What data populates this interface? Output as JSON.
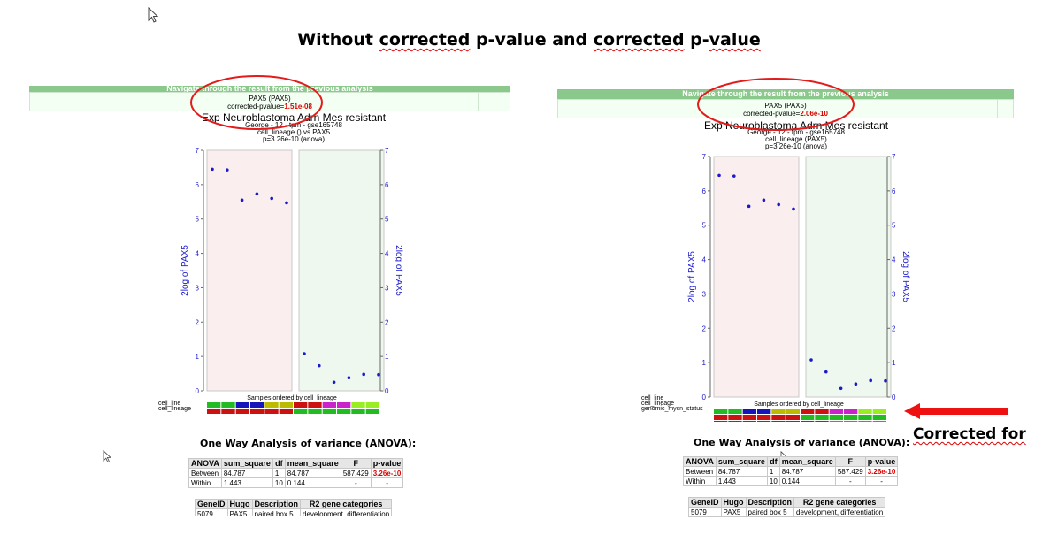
{
  "title": {
    "part1": "Without ",
    "part2": "corrected",
    "part3": " p-value and ",
    "part4": "corrected",
    "part5": " p-",
    "part6": "value"
  },
  "panels": [
    {
      "nav_label": "Navigate through the result from the previous analysis",
      "gene": "PAX5 (PAX5)",
      "pvalue_label": "corrected-pvalue=",
      "pvalue": "1.51e-08",
      "chart_title": "Exp Neuroblastoma Adrn Mes resistant",
      "subtitle_lines": [
        "George - 12 - tpm - gse165748",
        "cell_lineage () vs PAX5",
        "p=3.26e-10 (anova)"
      ],
      "legend_labels": [
        "cell_line",
        "cell_lineage"
      ],
      "anova": {
        "title": "One Way Analysis of variance (ANOVA):",
        "headers": [
          "ANOVA",
          "sum_square",
          "df",
          "mean_square",
          "F",
          "p-value"
        ],
        "rows": [
          [
            "Between",
            "84.787",
            "1",
            "84.787",
            "587.429",
            "3.26e-10"
          ],
          [
            "Within",
            "1.443",
            "10",
            "0.144",
            "-",
            "-"
          ]
        ]
      },
      "gene_table": {
        "headers": [
          "GeneID",
          "Hugo",
          "Description",
          "R2 gene categories"
        ],
        "rows": [
          [
            "5079",
            "PAX5",
            "paired box 5",
            "development, differentiation"
          ]
        ]
      }
    },
    {
      "nav_label": "Navigate through the result from the previous analysis",
      "gene": "PAX5 (PAX5)",
      "pvalue_label": "corrected-pvalue=",
      "pvalue": "2.06e-10",
      "chart_title": "Exp Neuroblastoma Adrn Mes resistant",
      "subtitle_lines": [
        "George - 12 - tpm - gse165748",
        "cell_lineage (PAX5)",
        "p=3.26e-10 (anova)"
      ],
      "legend_labels": [
        "cell_line",
        "cell_lineage",
        "genomic_mycn_status"
      ],
      "anova": {
        "title": "One Way Analysis of variance (ANOVA):",
        "headers": [
          "ANOVA",
          "sum_square",
          "df",
          "mean_square",
          "F",
          "p-value"
        ],
        "rows": [
          [
            "Between",
            "84.787",
            "1",
            "84.787",
            "587.429",
            "3.26e-10"
          ],
          [
            "Within",
            "1.443",
            "10",
            "0.144",
            "-",
            "-"
          ]
        ]
      },
      "gene_table": {
        "headers": [
          "GeneID",
          "Hugo",
          "Description",
          "R2 gene categories"
        ],
        "rows": [
          [
            "5079",
            "PAX5",
            "paired box 5",
            "development, differentiation"
          ]
        ]
      }
    }
  ],
  "chart_data": [
    {
      "type": "scatter",
      "title": "Exp Neuroblastoma Adrn Mes resistant",
      "ylabel": "2log of PAX5",
      "y2label": "2log of PAX5",
      "xlabel": "Samples ordered by cell_lineage",
      "ylim": [
        0,
        7
      ],
      "yticks": [
        0,
        1,
        2,
        3,
        4,
        5,
        6,
        7
      ],
      "groups": [
        {
          "values": [
            6.45,
            6.43,
            5.55,
            5.73,
            5.6,
            5.47
          ],
          "color": "#fbeeee"
        },
        {
          "values": [
            1.08,
            0.73,
            0.25,
            0.38,
            0.48,
            0.47
          ],
          "color": "#eef8ee"
        }
      ],
      "point_color": "#1a1acc",
      "legend_rows": [
        [
          "#22bb22",
          "#22bb22",
          "#1515bb",
          "#1515bb",
          "#bbbb00",
          "#bbbb00",
          "#cc1111",
          "#cc1111",
          "#cc22cc",
          "#cc22cc",
          "#99ee22",
          "#99ee22"
        ],
        [
          "#cc1111",
          "#cc1111",
          "#cc1111",
          "#cc1111",
          "#cc1111",
          "#cc1111",
          "#22bb22",
          "#22bb22",
          "#22bb22",
          "#22bb22",
          "#22bb22",
          "#22bb22"
        ]
      ]
    },
    {
      "type": "scatter",
      "title": "Exp Neuroblastoma Adrn Mes resistant",
      "ylabel": "2log of PAX5",
      "y2label": "2log of PAX5",
      "xlabel": "Samples ordered by cell_lineage",
      "ylim": [
        0,
        7
      ],
      "yticks": [
        0,
        1,
        2,
        3,
        4,
        5,
        6,
        7
      ],
      "groups": [
        {
          "values": [
            6.45,
            6.43,
            5.55,
            5.73,
            5.6,
            5.47
          ],
          "color": "#fbeeee"
        },
        {
          "values": [
            1.08,
            0.73,
            0.25,
            0.38,
            0.48,
            0.47
          ],
          "color": "#eef8ee"
        }
      ],
      "point_color": "#1a1acc",
      "legend_rows": [
        [
          "#22bb22",
          "#22bb22",
          "#1515bb",
          "#1515bb",
          "#bbbb00",
          "#bbbb00",
          "#cc1111",
          "#cc1111",
          "#cc22cc",
          "#cc22cc",
          "#99ee22",
          "#99ee22"
        ],
        [
          "#cc1111",
          "#cc1111",
          "#cc1111",
          "#cc1111",
          "#cc1111",
          "#cc1111",
          "#22bb22",
          "#22bb22",
          "#22bb22",
          "#22bb22",
          "#22bb22",
          "#22bb22"
        ],
        [
          "#cc1111",
          "#cc1111",
          "#cc1111",
          "#cc1111",
          "#cc1111",
          "#cc1111",
          "#cc1111",
          "#cc1111",
          "#22bb22",
          "#22bb22",
          "#22bb22",
          "#22bb22"
        ]
      ]
    }
  ],
  "annotation": {
    "text": "Corrected for",
    "arrow_color": "#ee1111",
    "ellipse_color": "#e21b1b"
  }
}
